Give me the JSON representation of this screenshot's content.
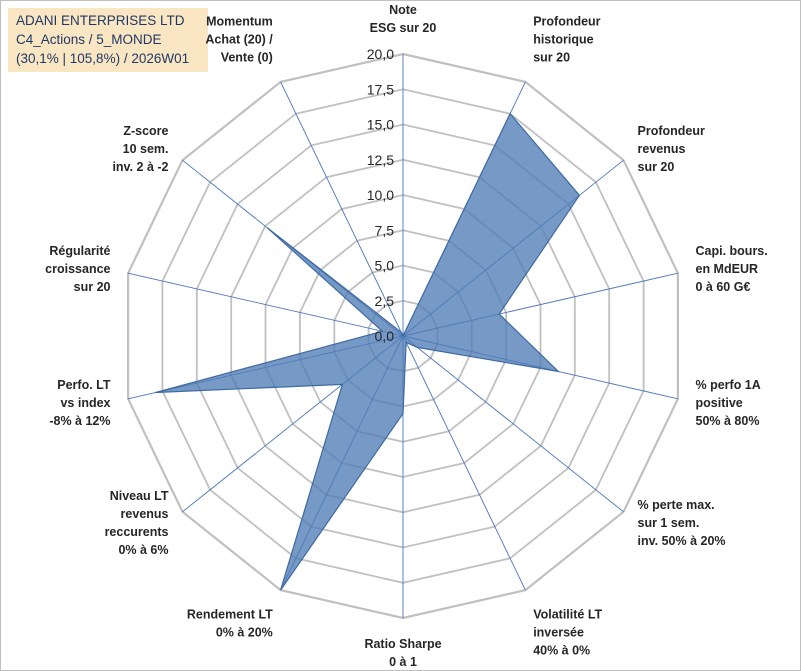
{
  "header": {
    "company": "ADANI ENTERPRISES LTD",
    "category": "C4_Actions / 5_MONDE",
    "stats": "(30,1% | 105,8%) / 2026W01"
  },
  "chart_data": {
    "type": "radar",
    "rmin": 0,
    "rmax": 20,
    "tick_labels": [
      "0,0",
      "2,5",
      "5,0",
      "7,5",
      "10,0",
      "12,5",
      "15,0",
      "17,5",
      "20,0"
    ],
    "axes": [
      {
        "label": [
          "Note",
          "ESG sur 20"
        ],
        "value": 0.0
      },
      {
        "label": [
          "Profondeur",
          "historique",
          "sur 20"
        ],
        "value": 17.5
      },
      {
        "label": [
          "Profondeur",
          "revenus",
          "sur 20"
        ],
        "value": 16.0
      },
      {
        "label": [
          "Capi. bours.",
          "en MdEUR",
          "0 à 60 G€"
        ],
        "value": 7.0
      },
      {
        "label": [
          "% perfo 1A",
          "positive",
          "50% à 80%"
        ],
        "value": 11.3
      },
      {
        "label": [
          "% perte max.",
          "sur 1 sem.",
          "inv. 50% à 20%"
        ],
        "value": 1.3
      },
      {
        "label": [
          "Volatilité LT",
          "inversée",
          "40% à 0%"
        ],
        "value": 0.5
      },
      {
        "label": [
          "Ratio Sharpe",
          "0 à 1"
        ],
        "value": 5.5
      },
      {
        "label": [
          "Rendement LT",
          "0% à 20%"
        ],
        "value": 20.0
      },
      {
        "label": [
          "Niveau LT",
          "revenus",
          "reccurents",
          "0% à 6%"
        ],
        "value": 5.5
      },
      {
        "label": [
          "Perfo. LT",
          "vs index",
          "-8% à 12%"
        ],
        "value": 18.0
      },
      {
        "label": [
          "Régularité",
          "croissance",
          "sur 20"
        ],
        "value": 1.5
      },
      {
        "label": [
          "Z-score",
          "10 sem.",
          "inv. 2 à -2"
        ],
        "value": 12.3
      },
      {
        "label": [
          "Momentum",
          "Achat (20) /",
          "Vente (0)"
        ],
        "value": 0.3
      }
    ],
    "colors": {
      "fill": "#4f7cb5",
      "stroke": "#3e6aa3",
      "grid": "#c0c0c0",
      "spoke": "#4a76c0",
      "text": "#262626"
    }
  }
}
